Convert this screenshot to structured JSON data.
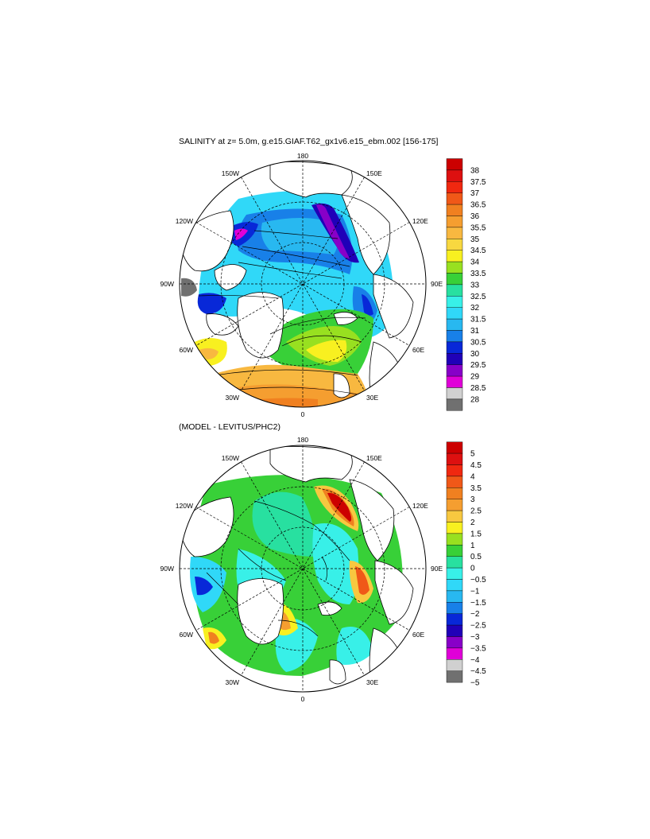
{
  "title_top": "SALINITY at z=   5.0m, g.e15.GIAF.T62_gx1v6.e15_ebm.002 [156-175]",
  "title_bottom": "(MODEL - LEVITUS/PHC2)",
  "map_labels": {
    "top": "180",
    "bottom": "0",
    "left": "90W",
    "right": "90E",
    "ul1": "150W",
    "ul2": "120W",
    "ur1": "150E",
    "ur2": "120E",
    "ll1": "60W",
    "ll2": "30W",
    "lr1": "60E",
    "lr2": "30E"
  },
  "colorbar_top": {
    "labels": [
      "38",
      "37.5",
      "37",
      "36.5",
      "36",
      "35.5",
      "35",
      "34.5",
      "34",
      "33.5",
      "33",
      "32.5",
      "32",
      "31.5",
      "31",
      "30.5",
      "30",
      "29.5",
      "29",
      "28.5",
      "28"
    ],
    "colors": [
      "#cc0000",
      "#dd1010",
      "#f02810",
      "#f05818",
      "#f08020",
      "#f59e30",
      "#f8b840",
      "#f8d840",
      "#f8f020",
      "#98e020",
      "#38d038",
      "#28e0a0",
      "#38f0e8",
      "#30d8f8",
      "#28b8f0",
      "#1880e8",
      "#0828d8",
      "#2000b8",
      "#8800c8",
      "#e000d8",
      "#d0d0d0",
      "#707070"
    ]
  },
  "colorbar_bottom": {
    "labels": [
      "5",
      "4.5",
      "4",
      "3.5",
      "3",
      "2.5",
      "2",
      "1.5",
      "1",
      "0.5",
      "0",
      "-0.5",
      "-1",
      "-1.5",
      "-2",
      "-2.5",
      "-3",
      "-3.5",
      "-4",
      "-4.5",
      "-5"
    ],
    "colors": [
      "#cc0000",
      "#dd1010",
      "#f02810",
      "#f05818",
      "#f08020",
      "#f59e30",
      "#f8c840",
      "#f8f020",
      "#98e020",
      "#38d038",
      "#28e0a0",
      "#38f0e8",
      "#30d8f8",
      "#28b8f0",
      "#1880e8",
      "#0828d8",
      "#2000b8",
      "#8800c8",
      "#e000d8",
      "#d0d0d0",
      "#707070"
    ]
  }
}
